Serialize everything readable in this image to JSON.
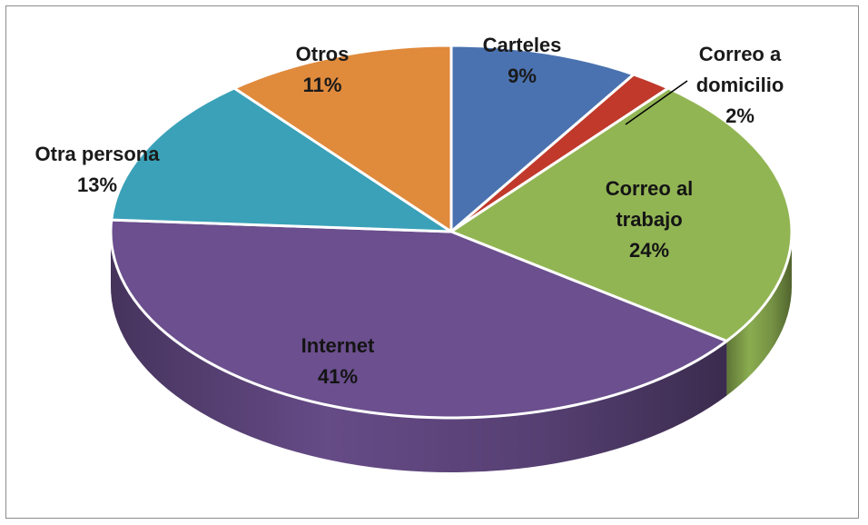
{
  "chart_data": {
    "type": "pie",
    "style": "3d",
    "title": "",
    "slices": [
      {
        "name": "Carteles",
        "value": 9,
        "label": "9%",
        "color": "#4a72b0"
      },
      {
        "name": "Correo a domicilio",
        "value": 2,
        "label": "2%",
        "color": "#c0392b"
      },
      {
        "name": "Correo al trabajo",
        "value": 24,
        "label": "24%",
        "color": "#92b554"
      },
      {
        "name": "Internet",
        "value": 41,
        "label": "41%",
        "color": "#6b4f8e"
      },
      {
        "name": "Otra persona",
        "value": 13,
        "label": "13%",
        "color": "#3aa1b8"
      },
      {
        "name": "Otros",
        "value": 11,
        "label": "11%",
        "color": "#e08a3c"
      }
    ],
    "legend": "none",
    "labels": "outside-and-inside"
  }
}
